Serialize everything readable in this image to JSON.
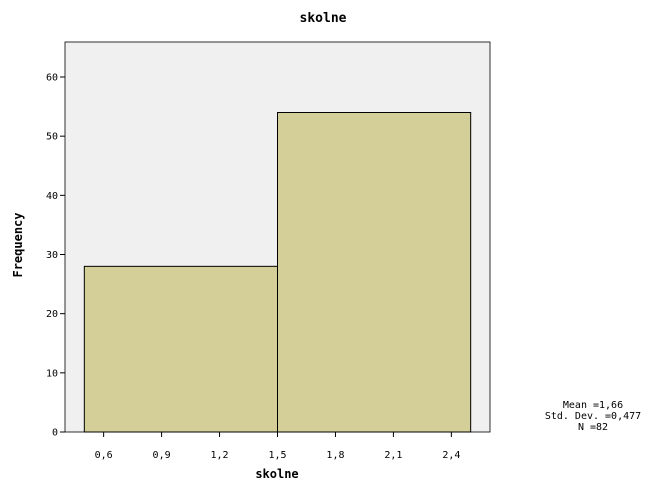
{
  "chart_data": {
    "type": "bar",
    "title": "skolne",
    "xlabel": "skolne",
    "ylabel": "Frequency",
    "bins": [
      {
        "start": 0.5,
        "end": 1.5,
        "count": 28
      },
      {
        "start": 1.5,
        "end": 2.5,
        "count": 54
      }
    ],
    "xlim": [
      0.4,
      2.6
    ],
    "ylim": [
      0,
      63
    ],
    "x_ticks": [
      0.6,
      0.9,
      1.2,
      1.5,
      1.8,
      2.1,
      2.4
    ],
    "x_tick_labels": [
      "0,6",
      "0,9",
      "1,2",
      "1,5",
      "1,8",
      "2,1",
      "2,4"
    ],
    "y_ticks": [
      0,
      10,
      20,
      30,
      40,
      50,
      60
    ],
    "y_tick_labels": [
      "0",
      "10",
      "20",
      "30",
      "40",
      "50",
      "60"
    ],
    "grid": false,
    "bar_color": "#d4cf99",
    "plot_background": "#f0f0f0",
    "stats": {
      "mean": "Mean =1,66",
      "std_dev": "Std. Dev. =0,477",
      "n": "N =82"
    }
  }
}
